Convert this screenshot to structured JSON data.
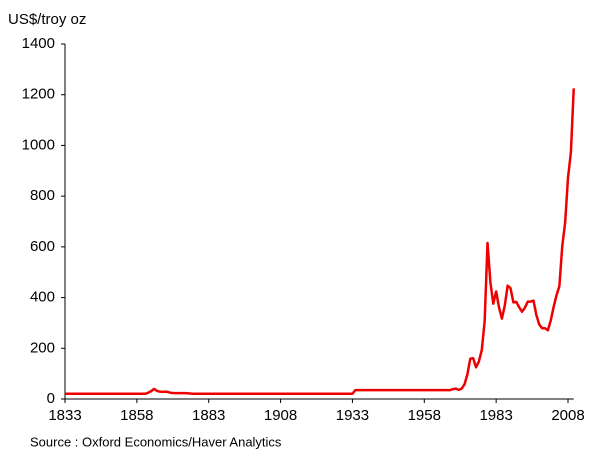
{
  "chart_data": {
    "type": "line",
    "ylabel": "US$/troy oz",
    "source": "Source : Oxford Economics/Haver Analytics",
    "xlim": [
      1833,
      2010
    ],
    "xticks": [
      1833,
      1858,
      1883,
      1908,
      1933,
      1958,
      1983,
      2008
    ],
    "ylim": [
      0,
      1400
    ],
    "yticks": [
      0,
      200,
      400,
      600,
      800,
      1000,
      1200,
      1400
    ],
    "grid": false,
    "series": [
      {
        "color": "#ee0000",
        "x": [
          1833,
          1861,
          1862,
          1863,
          1864,
          1865,
          1866,
          1867,
          1868,
          1869,
          1870,
          1871,
          1872,
          1873,
          1874,
          1875,
          1876,
          1877,
          1878,
          1933,
          1934,
          1967,
          1968,
          1969,
          1970,
          1971,
          1972,
          1973,
          1974,
          1975,
          1976,
          1977,
          1978,
          1979,
          1980,
          1981,
          1982,
          1983,
          1984,
          1985,
          1986,
          1987,
          1988,
          1989,
          1990,
          1991,
          1992,
          1993,
          1994,
          1995,
          1996,
          1997,
          1998,
          1999,
          2000,
          2001,
          2002,
          2003,
          2004,
          2005,
          2006,
          2007,
          2008,
          2009,
          2010
        ],
        "values": [
          20.67,
          20.67,
          25,
          31,
          40,
          32,
          29,
          28,
          29,
          27,
          24,
          23,
          23,
          23,
          23,
          23,
          22,
          21,
          20.67,
          20.67,
          35,
          35,
          39,
          41,
          36,
          41,
          58,
          97,
          159,
          161,
          125,
          148,
          193,
          306,
          615,
          460,
          376,
          424,
          361,
          317,
          368,
          447,
          437,
          381,
          383,
          362,
          344,
          360,
          384,
          384,
          388,
          331,
          294,
          279,
          279,
          271,
          310,
          363,
          409,
          445,
          603,
          695,
          872,
          972,
          1225
        ]
      }
    ]
  }
}
